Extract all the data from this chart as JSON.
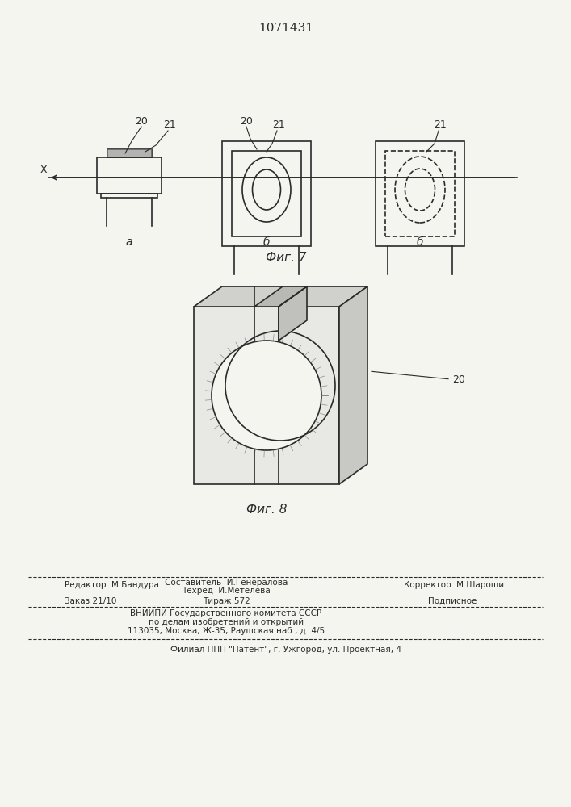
{
  "title": "1071431",
  "fig7_label": "Фиг. 7",
  "fig8_label": "Фиг. 8",
  "label_a": "а",
  "label_b1": "б",
  "label_b2": "б",
  "label_x": "X",
  "label_20": "20",
  "label_21": "21",
  "footer_line1": "Составитель  И.Генералова",
  "footer_editor": "Редактор  М.Бандура",
  "footer_tech": "Техред  И.Метелева",
  "footer_corrector": "Корректор  М.Шароши",
  "footer_order": "Заказ 21/10",
  "footer_tirazh": "Тираж 572",
  "footer_podpisnoe": "Подписное",
  "footer_vnipi": "ВНИИПИ Государственного комитета СССР",
  "footer_po_delam": "по делам изобретений и открытий",
  "footer_address": "113035, Москва, Ж-35, Раушская наб., д. 4/5",
  "footer_filial": "Филиал ППП \"Патент\", г. Ужгород, ул. Проектная, 4",
  "bg_color": "#f5f5f0",
  "line_color": "#2a2a2a"
}
